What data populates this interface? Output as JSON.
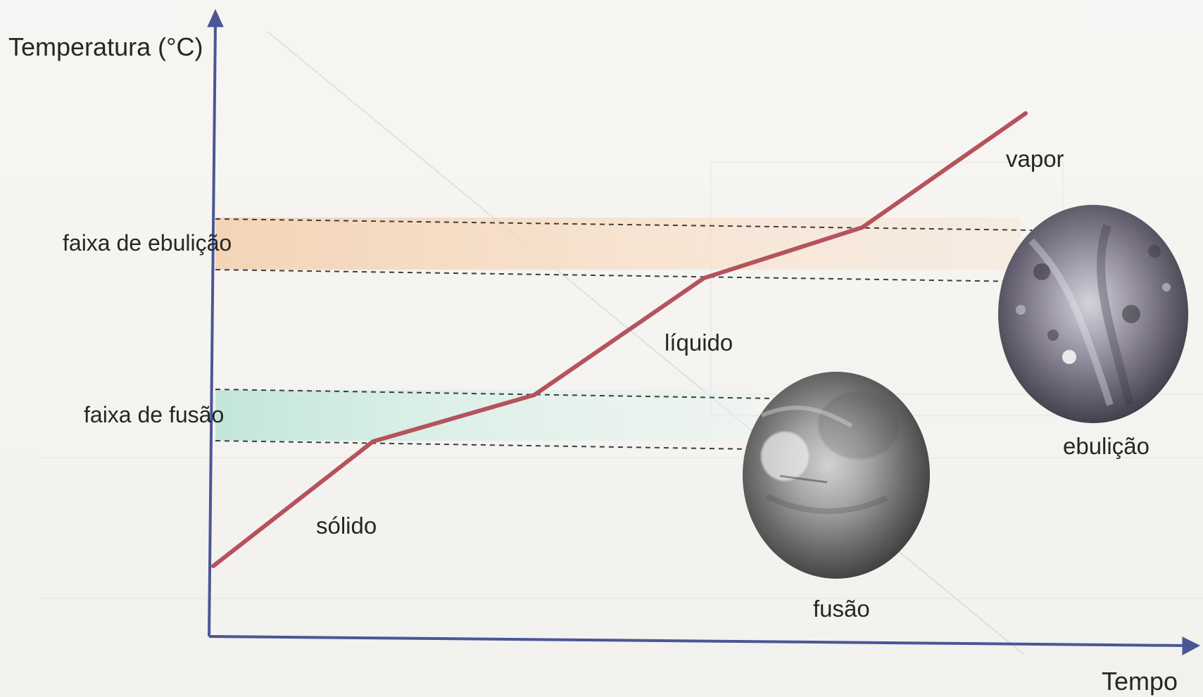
{
  "labels": {
    "y_axis": "Temperatura (°C)",
    "x_axis": "Tempo",
    "boiling_range": "faixa de ebulição",
    "melting_range": "faixa de fusão",
    "solid": "sólido",
    "liquid": "líquido",
    "vapor": "vapor",
    "melting": "fusão",
    "boiling": "ebulição"
  },
  "colors": {
    "axis": "#4b5696",
    "curve": "#b5535d",
    "boiling_band": "#f6d8bf",
    "melting_band": "#cdebe2",
    "dashed_line": "#3d3d3d",
    "text": "#262626"
  },
  "icons": {
    "melting_photo": "melting-material-photo",
    "boiling_photo": "boiling-liquid-photo"
  }
}
